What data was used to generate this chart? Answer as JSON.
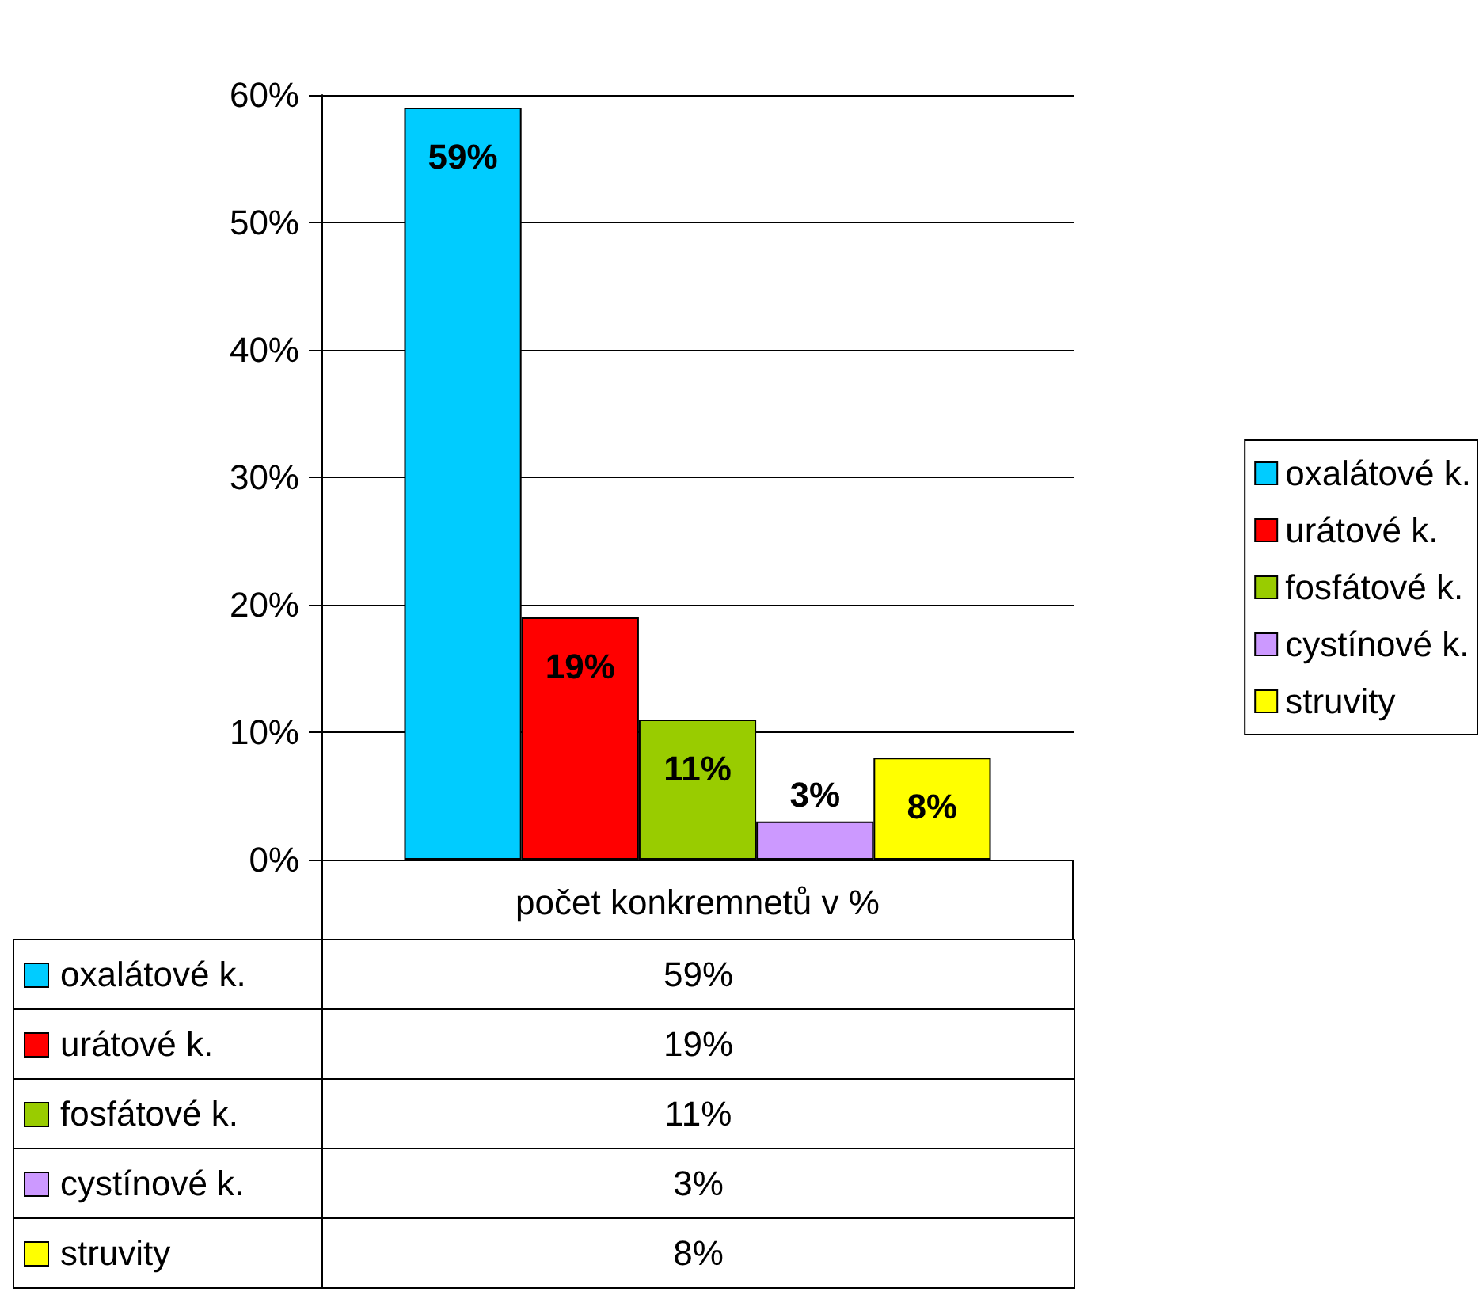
{
  "chart_data": {
    "type": "bar",
    "categories": [
      "počet konkremnetů v %"
    ],
    "series": [
      {
        "name": "oxalátové k.",
        "color": "#00ccff",
        "values": [
          59
        ],
        "value_labels": [
          "59%"
        ]
      },
      {
        "name": "urátové k.",
        "color": "#ff0000",
        "values": [
          19
        ],
        "value_labels": [
          "19%"
        ]
      },
      {
        "name": "fosfátové k.",
        "color": "#99cc00",
        "values": [
          11
        ],
        "value_labels": [
          "11%"
        ]
      },
      {
        "name": "cystínové k.",
        "color": "#cc99ff",
        "values": [
          3
        ],
        "value_labels": [
          "3%"
        ]
      },
      {
        "name": "struvity",
        "color": "#ffff00",
        "values": [
          8
        ],
        "value_labels": [
          "8%"
        ]
      }
    ],
    "ylim": [
      0,
      60
    ],
    "yticks": [
      {
        "value": 0,
        "label": "0%"
      },
      {
        "value": 10,
        "label": "10%"
      },
      {
        "value": 20,
        "label": "20%"
      },
      {
        "value": 30,
        "label": "30%"
      },
      {
        "value": 40,
        "label": "40%"
      },
      {
        "value": 50,
        "label": "50%"
      },
      {
        "value": 60,
        "label": "60%"
      }
    ],
    "grid": "y",
    "legend": "right"
  }
}
